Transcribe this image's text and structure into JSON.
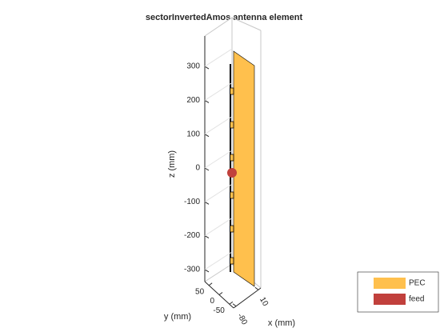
{
  "chart_data": {
    "type": "antenna3d",
    "title": "sectorInvertedAmos antenna element",
    "xlabel": "x (mm)",
    "ylabel": "y (mm)",
    "zlabel": "z (mm)",
    "zlim": [
      -350,
      400
    ],
    "zticks": [
      -300,
      -200,
      -100,
      0,
      100,
      200,
      300
    ],
    "ylim": [
      -70,
      70
    ],
    "yticks": [
      -50,
      0,
      50
    ],
    "xlim": [
      -90,
      20
    ],
    "xticks": [
      -80,
      10
    ],
    "grid": true,
    "series": [
      {
        "name": "PEC",
        "color": "#ffc04d"
      },
      {
        "name": "feed",
        "color": "#c1403c"
      }
    ]
  }
}
